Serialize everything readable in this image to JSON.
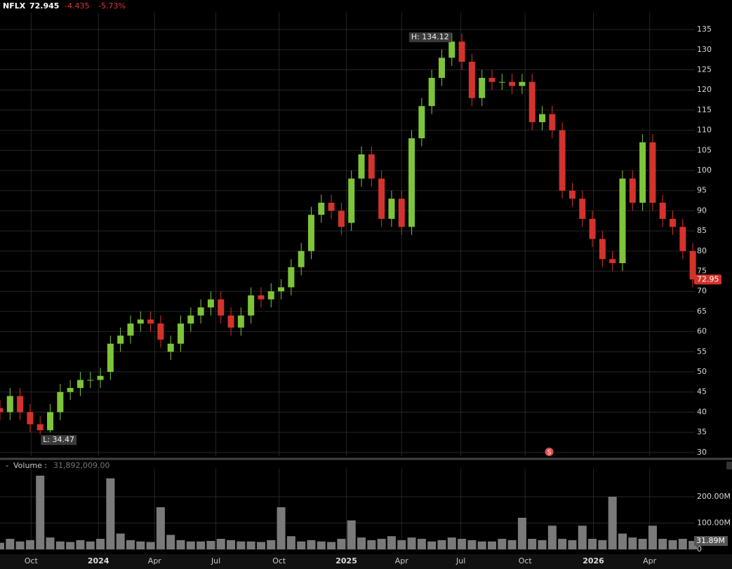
{
  "chart_data": {
    "type": "candlestick",
    "symbol": "NFLX",
    "last": 72.945,
    "change": -4.435,
    "change_pct": {
      "value": -5.73,
      "label": "-5.73%"
    },
    "xlim": [
      0,
      692
    ],
    "xticks": [
      {
        "value": 31,
        "label": "Oct"
      },
      {
        "value": 98,
        "label": "2024"
      },
      {
        "value": 154,
        "label": "Apr"
      },
      {
        "value": 215,
        "label": "Jul"
      },
      {
        "value": 278,
        "label": "Oct"
      },
      {
        "value": 345,
        "label": "2025"
      },
      {
        "value": 400,
        "label": "Apr"
      },
      {
        "value": 459,
        "label": "Jul"
      },
      {
        "value": 523,
        "label": "Oct"
      },
      {
        "value": 591,
        "label": "2026"
      },
      {
        "value": 647,
        "label": "Apr"
      }
    ],
    "ylim": [
      29.1,
      139.2
    ],
    "yticks": [
      30,
      35,
      40,
      45,
      50,
      55,
      60,
      65,
      70,
      75,
      80,
      85,
      90,
      95,
      100,
      105,
      110,
      115,
      120,
      125,
      130,
      135
    ],
    "up_color": "#7dc43a",
    "down_color": "#d3332c",
    "x": [
      0,
      10,
      20,
      30,
      40,
      50,
      60,
      70,
      80,
      90,
      100,
      110,
      120,
      130,
      140,
      150,
      160,
      170,
      180,
      190,
      200,
      210,
      220,
      230,
      240,
      250,
      260,
      270,
      280,
      290,
      300,
      310,
      320,
      330,
      340,
      350,
      360,
      370,
      380,
      390,
      400,
      410,
      420,
      430,
      440,
      450,
      460,
      470,
      480,
      490,
      500,
      510,
      520,
      530,
      540,
      550,
      560,
      570,
      580,
      590,
      600,
      610,
      620,
      630,
      640,
      650,
      660,
      670,
      680,
      690
    ],
    "open": [
      41,
      40,
      44,
      40,
      37,
      35.5,
      40,
      45,
      46,
      48,
      48,
      50,
      57,
      59,
      62,
      63,
      62,
      55,
      57,
      62,
      64,
      66,
      68,
      64,
      61,
      64,
      69,
      68,
      70,
      71,
      76,
      80,
      89,
      92,
      90,
      87,
      98,
      104,
      98,
      88,
      93,
      86,
      108,
      116,
      123,
      128,
      132,
      127,
      118,
      123,
      122,
      122,
      121,
      122,
      112,
      114,
      110,
      95,
      93,
      88,
      83,
      78,
      77,
      98,
      92,
      107,
      92,
      88,
      86,
      80
    ],
    "high": [
      43,
      46,
      46,
      42,
      39,
      42,
      47,
      48,
      50,
      50,
      51,
      59,
      61,
      64,
      65,
      65,
      64,
      59,
      64,
      66,
      68,
      70,
      70,
      66,
      66,
      71,
      71,
      72,
      73,
      78,
      82,
      91,
      94,
      94,
      92,
      100,
      106,
      106,
      100,
      95,
      95,
      110,
      118,
      125,
      130,
      134.12,
      134,
      129,
      125,
      125,
      124,
      124,
      124,
      124,
      116,
      116,
      112,
      97,
      95,
      90,
      85,
      80,
      100,
      100,
      109,
      109,
      94,
      90,
      88,
      82
    ],
    "low": [
      38,
      38,
      38,
      35,
      34.47,
      35,
      38,
      43,
      44,
      46,
      46,
      48,
      55,
      57,
      60,
      60,
      56,
      53,
      55,
      60,
      62,
      64,
      62,
      59,
      59,
      62,
      66,
      66,
      68,
      69,
      74,
      78,
      87,
      88,
      84,
      85,
      96,
      96,
      86,
      86,
      84,
      84,
      106,
      114,
      121,
      126,
      125,
      116,
      116,
      120,
      120,
      119,
      119,
      110,
      110,
      108,
      93,
      91,
      86,
      81,
      76,
      75,
      75,
      90,
      90,
      90,
      86,
      84,
      78,
      71
    ],
    "close": [
      40,
      44,
      40,
      37,
      35.5,
      40,
      45,
      46,
      48,
      48,
      49,
      57,
      59,
      62,
      63,
      62,
      58,
      57,
      62,
      64,
      66,
      68,
      64,
      61,
      64,
      69,
      68,
      70,
      71,
      76,
      80,
      89,
      92,
      90,
      86,
      98,
      104,
      98,
      88,
      93,
      86,
      108,
      116,
      123,
      128,
      132,
      127,
      118,
      123,
      122,
      122,
      121,
      122,
      112,
      114,
      110,
      95,
      93,
      88,
      83,
      78,
      77,
      98,
      92,
      107,
      92,
      88,
      86,
      80,
      72.945
    ],
    "close_value_labels": [
      null,
      null,
      null,
      null,
      null,
      null,
      null,
      null,
      null,
      null,
      null,
      null,
      null,
      null,
      null,
      null,
      null,
      null,
      null,
      null,
      null,
      null,
      null,
      null,
      null,
      null,
      null,
      null,
      null,
      null,
      null,
      null,
      null,
      null,
      null,
      null,
      null,
      null,
      null,
      null,
      null,
      null,
      null,
      null,
      null,
      null,
      null,
      null,
      null,
      null,
      null,
      null,
      null,
      null,
      null,
      null,
      null,
      null,
      null,
      null,
      null,
      null,
      null,
      null,
      null,
      null,
      null,
      null,
      null,
      "72.95"
    ],
    "annotations": [
      {
        "text": "H: 134.12",
        "index": 45
      },
      {
        "text": "L: 34.47",
        "index": 4
      }
    ],
    "events": [
      {
        "label": "S",
        "x": 547
      }
    ],
    "volume": {
      "title": "Volume :",
      "current": {
        "value": 31892009,
        "label": "31,892,009.00"
      },
      "color": "#7a7a7a",
      "ylim": [
        0,
        296000000
      ],
      "yticks": [
        0,
        {
          "value": 100000000,
          "label": "100.00M"
        },
        {
          "value": 200000000,
          "label": "200.00M"
        }
      ],
      "values": [
        25000000,
        40000000,
        30000000,
        35000000,
        280000000,
        45000000,
        30000000,
        28000000,
        35000000,
        30000000,
        40000000,
        270000000,
        60000000,
        35000000,
        30000000,
        28000000,
        160000000,
        55000000,
        35000000,
        30000000,
        30000000,
        32000000,
        40000000,
        35000000,
        30000000,
        30000000,
        28000000,
        35000000,
        160000000,
        50000000,
        30000000,
        35000000,
        30000000,
        28000000,
        40000000,
        110000000,
        45000000,
        35000000,
        40000000,
        50000000,
        35000000,
        45000000,
        40000000,
        30000000,
        35000000,
        45000000,
        40000000,
        35000000,
        30000000,
        30000000,
        40000000,
        35000000,
        120000000,
        40000000,
        35000000,
        90000000,
        40000000,
        35000000,
        90000000,
        40000000,
        35000000,
        200000000,
        60000000,
        45000000,
        40000000,
        90000000,
        40000000,
        35000000,
        40000000,
        31892009
      ],
      "value_labels": [
        null,
        null,
        null,
        null,
        null,
        null,
        null,
        null,
        null,
        null,
        null,
        null,
        null,
        null,
        null,
        null,
        null,
        null,
        null,
        null,
        null,
        null,
        null,
        null,
        null,
        null,
        null,
        null,
        null,
        null,
        null,
        null,
        null,
        null,
        null,
        null,
        null,
        null,
        null,
        null,
        null,
        null,
        null,
        null,
        null,
        null,
        null,
        null,
        null,
        null,
        null,
        null,
        null,
        null,
        null,
        null,
        null,
        null,
        null,
        null,
        null,
        null,
        null,
        null,
        null,
        null,
        null,
        null,
        null,
        "31.89M"
      ]
    }
  }
}
